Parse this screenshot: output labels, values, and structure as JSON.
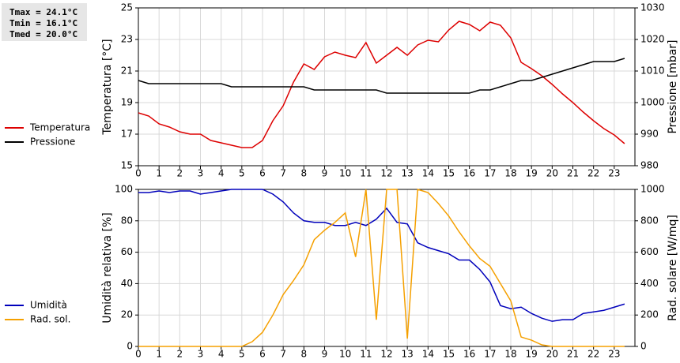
{
  "chart_data": [
    {
      "type": "line",
      "annotations": [
        "Tmax = 24.1°C",
        "Tmin = 16.1°C",
        "Tmed = 20.0°C"
      ],
      "ylabel": "Temperatura [°C]",
      "y2label": "Pressione [mbar]",
      "x": [
        0,
        0.5,
        1,
        1.5,
        2,
        2.5,
        3,
        3.5,
        4,
        4.5,
        5,
        5.5,
        6,
        6.5,
        7,
        7.5,
        8,
        8.5,
        9,
        9.5,
        10,
        10.5,
        11,
        11.5,
        12,
        12.5,
        13,
        13.5,
        14,
        14.5,
        15,
        15.5,
        16,
        16.5,
        17,
        17.5,
        18,
        18.5,
        19,
        19.5,
        20,
        20.5,
        21,
        21.5,
        22,
        22.5,
        23,
        23.5
      ],
      "xlim": [
        0,
        24
      ],
      "xticks": [
        0,
        1,
        2,
        3,
        4,
        5,
        6,
        7,
        8,
        9,
        10,
        11,
        12,
        13,
        14,
        15,
        16,
        17,
        18,
        19,
        20,
        21,
        22,
        23
      ],
      "ylim": [
        15,
        25
      ],
      "yticks": [
        15,
        17,
        19,
        21,
        23,
        25
      ],
      "y2lim": [
        980,
        1030
      ],
      "y2ticks": [
        980,
        990,
        1000,
        1010,
        1020,
        1030
      ],
      "grid": true,
      "series": [
        {
          "name": "Temperatura",
          "color": "#dd0000",
          "values": [
            18.35,
            18.15,
            17.65,
            17.45,
            17.15,
            17.0,
            17.0,
            16.6,
            16.45,
            16.3,
            16.15,
            16.15,
            16.6,
            17.85,
            18.8,
            20.3,
            21.45,
            21.1,
            21.9,
            22.2,
            22.0,
            21.85,
            22.8,
            21.5,
            22.0,
            22.5,
            22.0,
            22.65,
            22.95,
            22.85,
            23.6,
            24.15,
            23.95,
            23.55,
            24.1,
            23.9,
            23.1,
            21.55,
            21.15,
            20.7,
            20.15,
            19.55,
            19.0,
            18.4,
            17.85,
            17.35,
            16.95,
            16.4
          ]
        },
        {
          "name": "Pressione",
          "color": "#000000",
          "axis": "y2",
          "values": [
            1007,
            1006,
            1006,
            1006,
            1006,
            1006,
            1006,
            1006,
            1006,
            1005,
            1005,
            1005,
            1005,
            1005,
            1005,
            1005,
            1005,
            1004,
            1004,
            1004,
            1004,
            1004,
            1004,
            1004,
            1003,
            1003,
            1003,
            1003,
            1003,
            1003,
            1003,
            1003,
            1003,
            1004,
            1004,
            1005,
            1006,
            1007,
            1007,
            1008,
            1009,
            1010,
            1011,
            1012,
            1013,
            1013,
            1013,
            1014
          ]
        }
      ]
    },
    {
      "type": "line",
      "ylabel": "Umidità relativa [%]",
      "y2label": "Rad. solare [W/mq]",
      "x": [
        0,
        0.5,
        1,
        1.5,
        2,
        2.5,
        3,
        3.5,
        4,
        4.5,
        5,
        5.5,
        6,
        6.5,
        7,
        7.5,
        8,
        8.5,
        9,
        9.5,
        10,
        10.5,
        11,
        11.5,
        12,
        12.5,
        13,
        13.5,
        14,
        14.5,
        15,
        15.5,
        16,
        16.5,
        17,
        17.5,
        18,
        18.5,
        19,
        19.5,
        20,
        20.5,
        21,
        21.5,
        22,
        22.5,
        23,
        23.5
      ],
      "xlim": [
        0,
        24
      ],
      "xticks": [
        0,
        1,
        2,
        3,
        4,
        5,
        6,
        7,
        8,
        9,
        10,
        11,
        12,
        13,
        14,
        15,
        16,
        17,
        18,
        19,
        20,
        21,
        22,
        23
      ],
      "ylim": [
        0,
        100
      ],
      "yticks": [
        0,
        20,
        40,
        60,
        80,
        100
      ],
      "y2lim": [
        0,
        1000
      ],
      "y2ticks": [
        0,
        200,
        400,
        600,
        800,
        1000
      ],
      "grid": true,
      "series": [
        {
          "name": "Umidità",
          "color": "#0000bb",
          "values": [
            98,
            98,
            99,
            98,
            99,
            99,
            97,
            98,
            99,
            100,
            100,
            100,
            100,
            97,
            92,
            85,
            80,
            79,
            79,
            77,
            77,
            79,
            77,
            81,
            88,
            79,
            78,
            66,
            63,
            61,
            59,
            55,
            55,
            49,
            41,
            26,
            24,
            25,
            21,
            18,
            16,
            17,
            17,
            21,
            22,
            23,
            25,
            27
          ]
        },
        {
          "name": "Rad. sol.",
          "color": "#f5a000",
          "axis": "y2",
          "values": [
            0,
            0,
            0,
            0,
            0,
            0,
            0,
            0,
            0,
            0,
            0,
            30,
            90,
            200,
            330,
            420,
            520,
            680,
            740,
            790,
            850,
            570,
            1000,
            170,
            1000,
            1000,
            50,
            1000,
            980,
            910,
            830,
            730,
            640,
            560,
            510,
            400,
            290,
            60,
            40,
            10,
            0,
            0,
            0,
            0,
            0,
            0,
            0,
            0
          ]
        }
      ]
    }
  ]
}
